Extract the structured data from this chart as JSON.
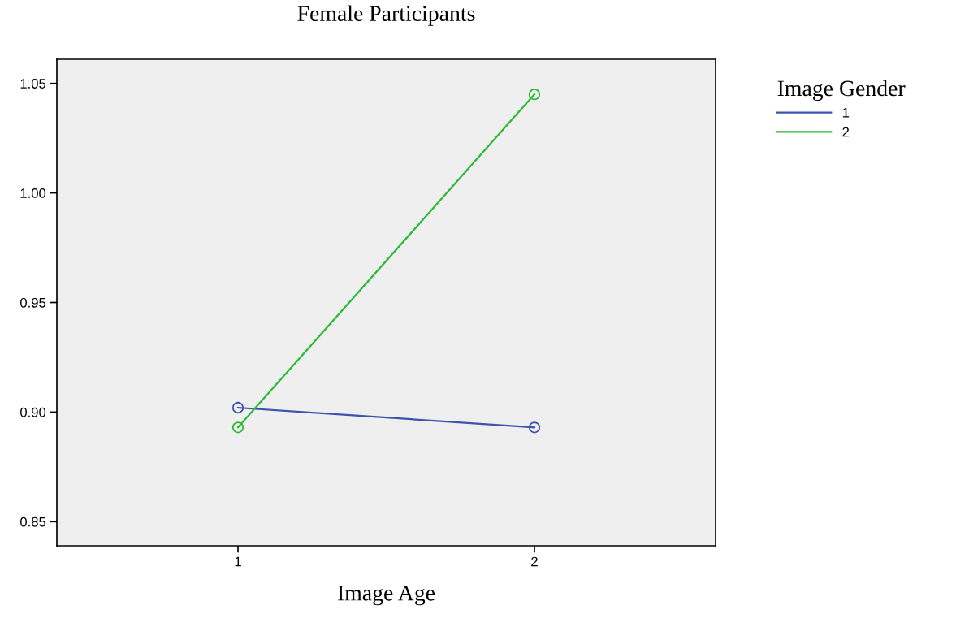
{
  "chart_data": {
    "type": "line",
    "title": "Female Participants",
    "xlabel": "Image Age",
    "legend_title": "Image Gender",
    "categories": [
      "1",
      "2"
    ],
    "series": [
      {
        "name": "1",
        "color": "#3e53b0",
        "values": [
          0.902,
          0.893
        ]
      },
      {
        "name": "2",
        "color": "#2ab934",
        "values": [
          0.893,
          1.045
        ]
      }
    ],
    "ylim": [
      0.839,
      1.061
    ],
    "yticks": [
      {
        "value": 0.85,
        "label": "0.85"
      },
      {
        "value": 0.9,
        "label": "0.90"
      },
      {
        "value": 0.95,
        "label": "0.95"
      },
      {
        "value": 1.0,
        "label": "1.00"
      },
      {
        "value": 1.05,
        "label": "1.05"
      }
    ],
    "marker": "circle",
    "line_style": "solid",
    "grid": false,
    "legend": "top right"
  }
}
